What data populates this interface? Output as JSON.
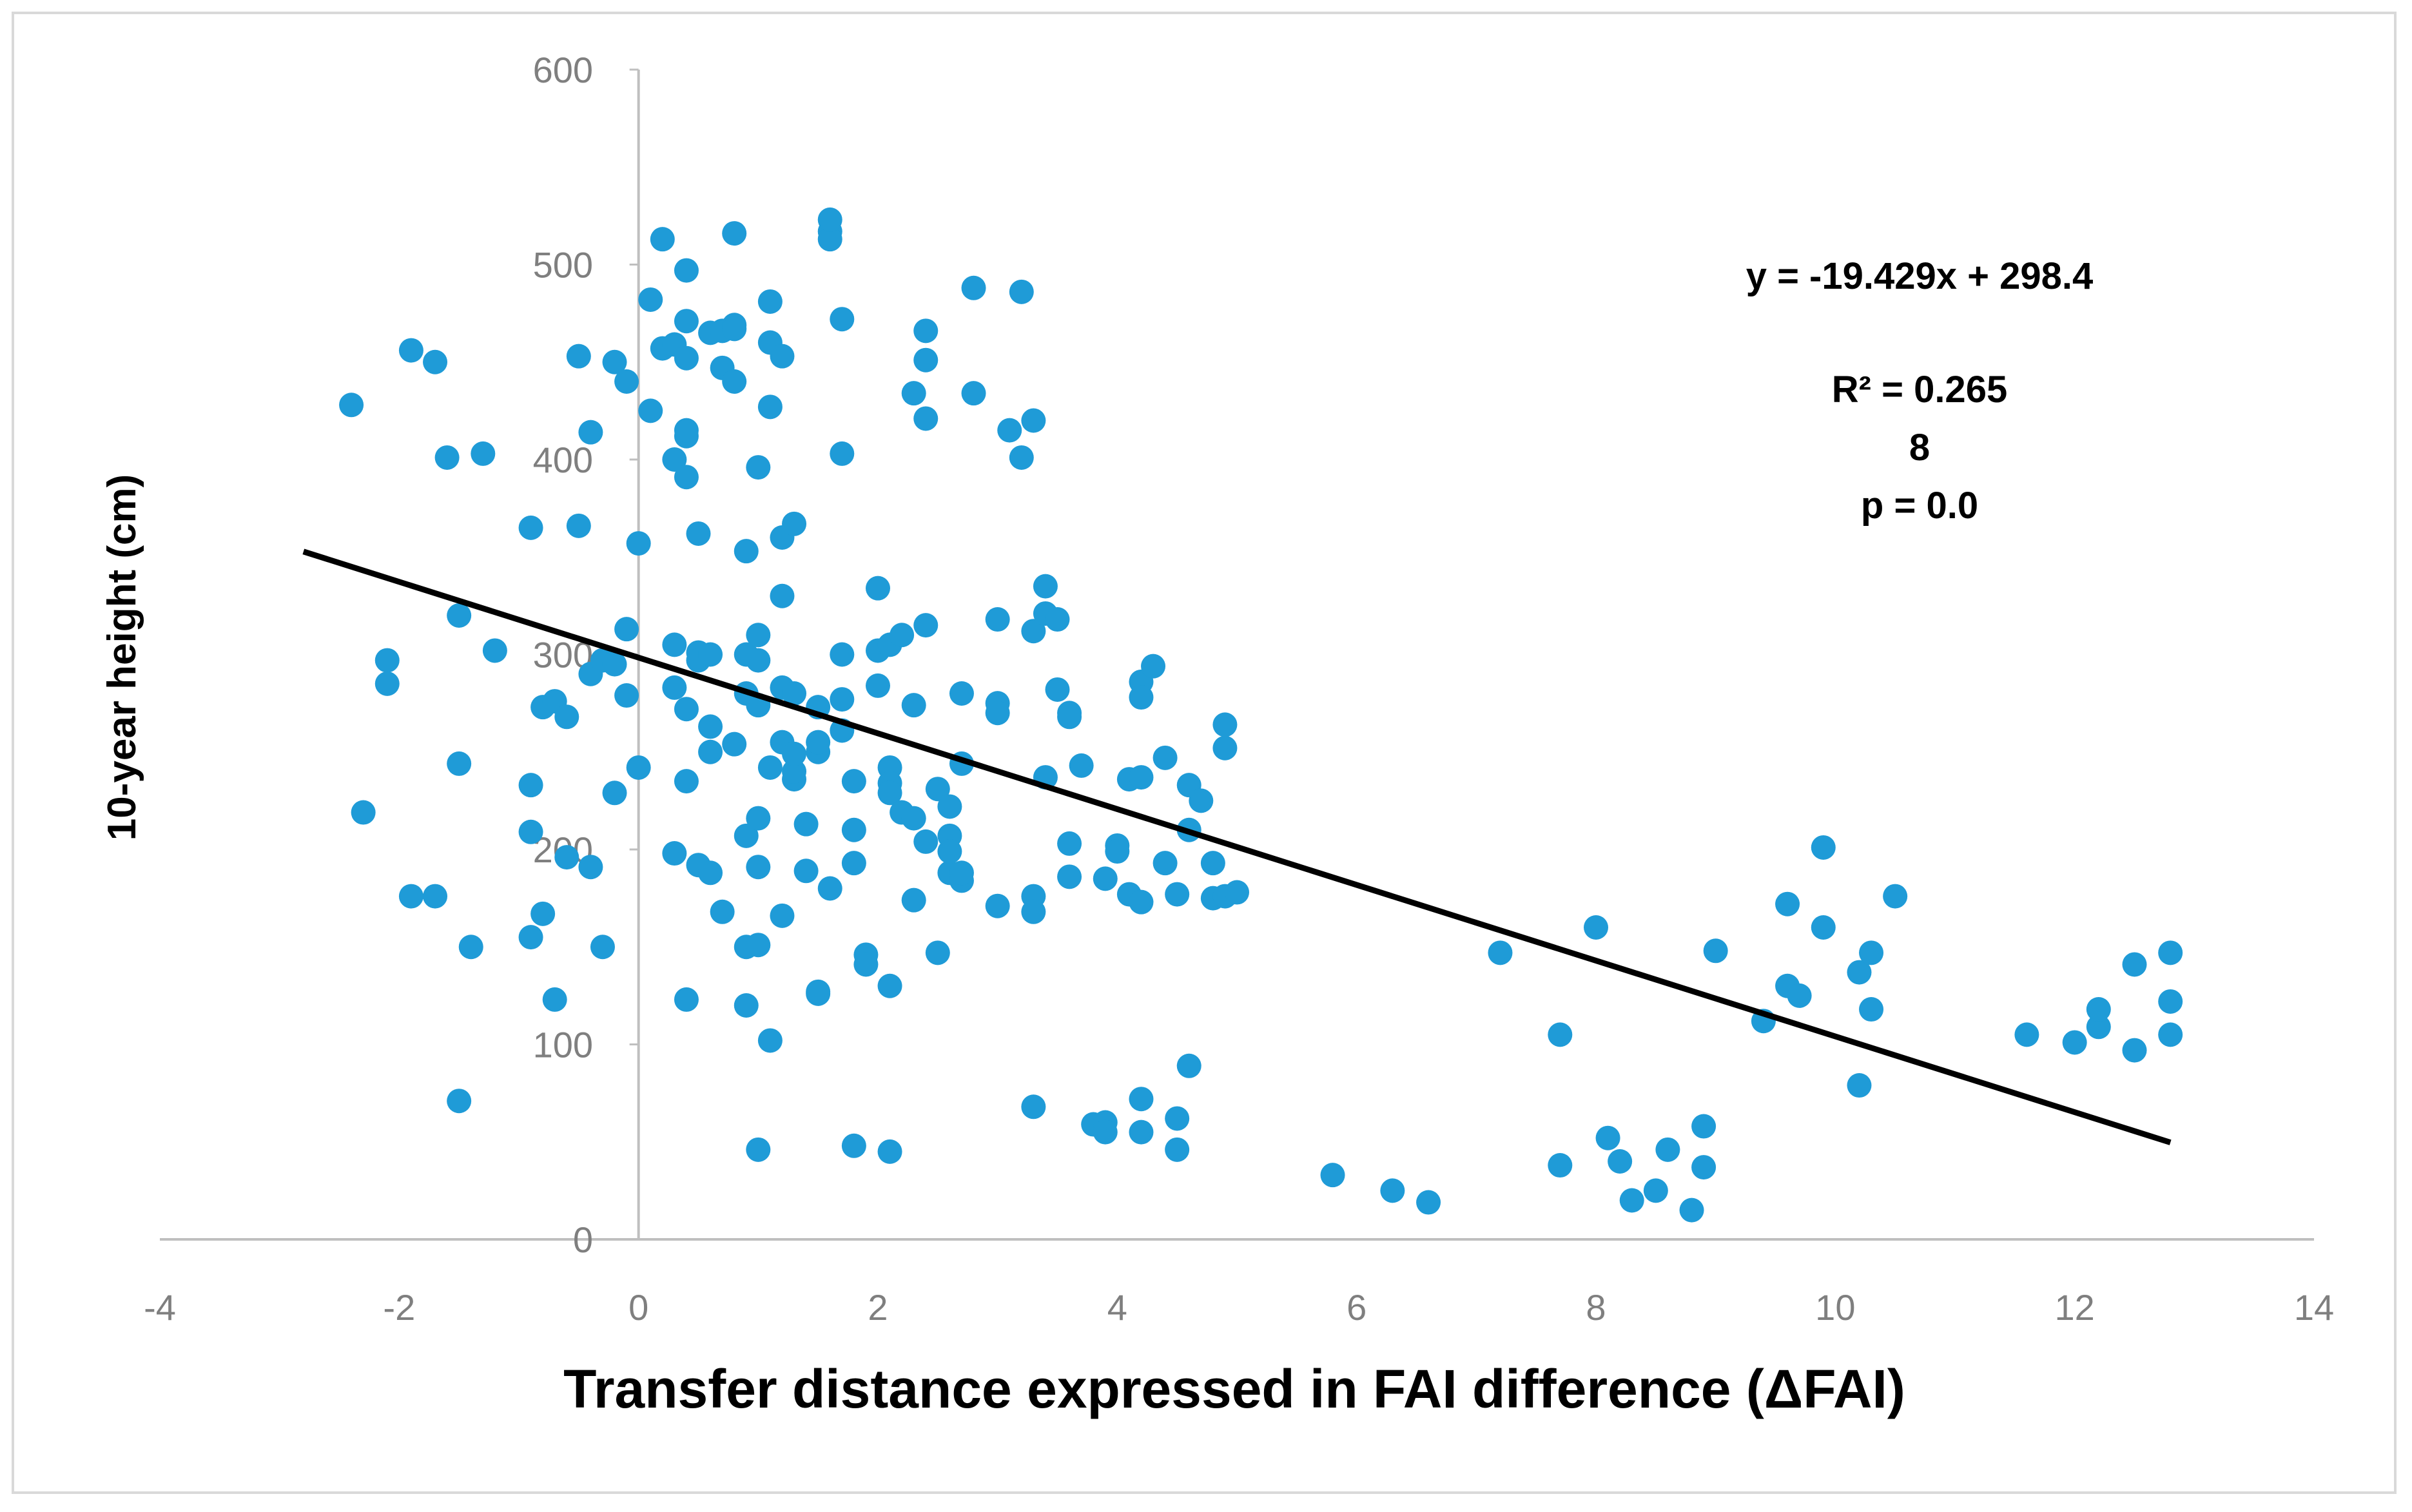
{
  "chart_data": {
    "type": "scatter",
    "title": "",
    "xlabel": "Transfer distance expressed in FAI difference (ΔFAI)",
    "ylabel": "10-year height (cm)",
    "xlim": [
      -4,
      14
    ],
    "ylim": [
      0,
      600
    ],
    "x_ticks": [
      "-4",
      "-2",
      "0",
      "2",
      "4",
      "6",
      "8",
      "10",
      "12",
      "14"
    ],
    "y_ticks": [
      "0",
      "100",
      "200",
      "300",
      "400",
      "500",
      "600"
    ],
    "grid": false,
    "marker_color": "#1f9bd7",
    "trendline": {
      "slope": -19.429,
      "intercept": 298.4,
      "x_start": -2.8,
      "x_end": 12.8,
      "color": "#000000"
    },
    "annotations": {
      "equation": "y = -19.429x + 298.4",
      "r2": "R² = 0.265",
      "n": "8",
      "p": "p = 0.0"
    },
    "points": [
      [
        -2.4,
        428
      ],
      [
        -2.3,
        219
      ],
      [
        -2.1,
        297
      ],
      [
        -2.1,
        285
      ],
      [
        -1.9,
        456
      ],
      [
        -1.9,
        176
      ],
      [
        -1.7,
        450
      ],
      [
        -1.7,
        176
      ],
      [
        -1.6,
        401
      ],
      [
        -1.5,
        320
      ],
      [
        -1.5,
        244
      ],
      [
        -1.4,
        150
      ],
      [
        -1.5,
        71
      ],
      [
        -1.3,
        403
      ],
      [
        -1.2,
        302
      ],
      [
        -0.9,
        365
      ],
      [
        -0.9,
        233
      ],
      [
        -0.9,
        209
      ],
      [
        -0.9,
        155
      ],
      [
        -0.8,
        167
      ],
      [
        -0.8,
        273
      ],
      [
        -0.7,
        276
      ],
      [
        -0.7,
        123
      ],
      [
        -0.6,
        196
      ],
      [
        -0.6,
        268
      ],
      [
        -0.5,
        453
      ],
      [
        -0.5,
        366
      ],
      [
        -0.4,
        290
      ],
      [
        -0.4,
        414
      ],
      [
        -0.4,
        191
      ],
      [
        -0.3,
        297
      ],
      [
        -0.3,
        150
      ],
      [
        -0.2,
        450
      ],
      [
        -0.2,
        295
      ],
      [
        -0.2,
        229
      ],
      [
        -0.1,
        440
      ],
      [
        -0.1,
        279
      ],
      [
        -0.1,
        313
      ],
      [
        0.0,
        357
      ],
      [
        0.0,
        242
      ],
      [
        0.1,
        425
      ],
      [
        0.1,
        482
      ],
      [
        0.2,
        457
      ],
      [
        0.2,
        513
      ],
      [
        0.3,
        459
      ],
      [
        0.3,
        400
      ],
      [
        0.3,
        305
      ],
      [
        0.3,
        283
      ],
      [
        0.3,
        198
      ],
      [
        0.4,
        452
      ],
      [
        0.4,
        497
      ],
      [
        0.4,
        471
      ],
      [
        0.4,
        412
      ],
      [
        0.4,
        415
      ],
      [
        0.4,
        391
      ],
      [
        0.5,
        301
      ],
      [
        0.5,
        297
      ],
      [
        0.4,
        272
      ],
      [
        0.4,
        235
      ],
      [
        0.5,
        192
      ],
      [
        0.4,
        123
      ],
      [
        0.5,
        362
      ],
      [
        0.6,
        465
      ],
      [
        0.6,
        300
      ],
      [
        0.6,
        263
      ],
      [
        0.6,
        250
      ],
      [
        0.6,
        188
      ],
      [
        0.7,
        466
      ],
      [
        0.7,
        447
      ],
      [
        0.7,
        168
      ],
      [
        0.8,
        469
      ],
      [
        0.8,
        440
      ],
      [
        0.8,
        254
      ],
      [
        0.8,
        516
      ],
      [
        0.8,
        467
      ],
      [
        0.9,
        353
      ],
      [
        0.9,
        300
      ],
      [
        0.9,
        280
      ],
      [
        0.9,
        207
      ],
      [
        0.9,
        150
      ],
      [
        0.9,
        120
      ],
      [
        1.0,
        297
      ],
      [
        1.0,
        216
      ],
      [
        1.0,
        191
      ],
      [
        1.0,
        396
      ],
      [
        1.0,
        310
      ],
      [
        1.0,
        274
      ],
      [
        1.1,
        427
      ],
      [
        1.0,
        151
      ],
      [
        1.0,
        46
      ],
      [
        1.1,
        102
      ],
      [
        1.1,
        481
      ],
      [
        1.1,
        460
      ],
      [
        1.1,
        242
      ],
      [
        1.2,
        453
      ],
      [
        1.2,
        330
      ],
      [
        1.2,
        360
      ],
      [
        1.2,
        255
      ],
      [
        1.2,
        283
      ],
      [
        1.2,
        166
      ],
      [
        1.3,
        367
      ],
      [
        1.3,
        236
      ],
      [
        1.3,
        240
      ],
      [
        1.3,
        249
      ],
      [
        1.3,
        280
      ],
      [
        1.4,
        213
      ],
      [
        1.4,
        189
      ],
      [
        1.5,
        273
      ],
      [
        1.5,
        250
      ],
      [
        1.5,
        255
      ],
      [
        1.5,
        126
      ],
      [
        1.5,
        127
      ],
      [
        1.6,
        517
      ],
      [
        1.6,
        513
      ],
      [
        1.6,
        523
      ],
      [
        1.6,
        180
      ],
      [
        1.7,
        472
      ],
      [
        1.7,
        403
      ],
      [
        1.7,
        300
      ],
      [
        1.7,
        277
      ],
      [
        1.7,
        261
      ],
      [
        1.8,
        48
      ],
      [
        1.8,
        193
      ],
      [
        1.8,
        210
      ],
      [
        1.8,
        235
      ],
      [
        1.9,
        146
      ],
      [
        1.9,
        141
      ],
      [
        2.0,
        284
      ],
      [
        2.0,
        334
      ],
      [
        2.0,
        302
      ],
      [
        2.1,
        242
      ],
      [
        2.1,
        234
      ],
      [
        2.1,
        305
      ],
      [
        2.1,
        229
      ],
      [
        2.1,
        130
      ],
      [
        2.1,
        45
      ],
      [
        2.2,
        219
      ],
      [
        2.2,
        310
      ],
      [
        2.3,
        216
      ],
      [
        2.3,
        274
      ],
      [
        2.3,
        174
      ],
      [
        2.3,
        434
      ],
      [
        2.4,
        421
      ],
      [
        2.4,
        466
      ],
      [
        2.4,
        451
      ],
      [
        2.4,
        315
      ],
      [
        2.4,
        204
      ],
      [
        2.5,
        231
      ],
      [
        2.6,
        188
      ],
      [
        2.6,
        222
      ],
      [
        2.5,
        147
      ],
      [
        2.6,
        207
      ],
      [
        2.6,
        199
      ],
      [
        2.7,
        244
      ],
      [
        2.7,
        184
      ],
      [
        2.7,
        280
      ],
      [
        2.7,
        188
      ],
      [
        2.8,
        488
      ],
      [
        2.8,
        434
      ],
      [
        3.0,
        318
      ],
      [
        3.0,
        275
      ],
      [
        3.0,
        270
      ],
      [
        3.0,
        171
      ],
      [
        3.2,
        486
      ],
      [
        3.2,
        401
      ],
      [
        3.1,
        415
      ],
      [
        3.3,
        420
      ],
      [
        3.3,
        176
      ],
      [
        3.3,
        168
      ],
      [
        3.3,
        68
      ],
      [
        3.3,
        312
      ],
      [
        3.4,
        335
      ],
      [
        3.4,
        321
      ],
      [
        3.4,
        237
      ],
      [
        3.5,
        318
      ],
      [
        3.5,
        282
      ],
      [
        3.6,
        203
      ],
      [
        3.6,
        186
      ],
      [
        3.6,
        270
      ],
      [
        3.6,
        268
      ],
      [
        3.7,
        243
      ],
      [
        3.8,
        59
      ],
      [
        3.9,
        60
      ],
      [
        3.9,
        185
      ],
      [
        3.9,
        55
      ],
      [
        4.0,
        202
      ],
      [
        4.0,
        199
      ],
      [
        4.1,
        236
      ],
      [
        4.1,
        177
      ],
      [
        4.2,
        237
      ],
      [
        4.2,
        173
      ],
      [
        4.2,
        286
      ],
      [
        4.2,
        278
      ],
      [
        4.2,
        55
      ],
      [
        4.2,
        72
      ],
      [
        4.3,
        294
      ],
      [
        4.4,
        193
      ],
      [
        4.4,
        247
      ],
      [
        4.5,
        62
      ],
      [
        4.5,
        177
      ],
      [
        4.5,
        46
      ],
      [
        4.6,
        233
      ],
      [
        4.6,
        89
      ],
      [
        4.7,
        225
      ],
      [
        4.6,
        210
      ],
      [
        4.8,
        193
      ],
      [
        4.8,
        175
      ],
      [
        4.9,
        252
      ],
      [
        4.9,
        264
      ],
      [
        4.9,
        176
      ],
      [
        5.0,
        178
      ],
      [
        5.8,
        33
      ],
      [
        6.3,
        25
      ],
      [
        6.6,
        19
      ],
      [
        7.2,
        147
      ],
      [
        7.7,
        38
      ],
      [
        7.7,
        105
      ],
      [
        8.0,
        160
      ],
      [
        8.1,
        52
      ],
      [
        8.2,
        40
      ],
      [
        8.3,
        20
      ],
      [
        8.5,
        25
      ],
      [
        8.6,
        46
      ],
      [
        8.8,
        15
      ],
      [
        8.9,
        58
      ],
      [
        8.9,
        37
      ],
      [
        9.0,
        148
      ],
      [
        9.4,
        112
      ],
      [
        9.6,
        130
      ],
      [
        9.6,
        172
      ],
      [
        9.7,
        125
      ],
      [
        9.9,
        160
      ],
      [
        9.9,
        201
      ],
      [
        10.2,
        137
      ],
      [
        10.3,
        147
      ],
      [
        10.3,
        118
      ],
      [
        10.2,
        79
      ],
      [
        10.5,
        176
      ],
      [
        11.6,
        105
      ],
      [
        12.0,
        101
      ],
      [
        12.2,
        109
      ],
      [
        12.2,
        118
      ],
      [
        12.5,
        97
      ],
      [
        12.5,
        141
      ],
      [
        12.8,
        105
      ],
      [
        12.8,
        147
      ],
      [
        12.8,
        122
      ]
    ]
  }
}
